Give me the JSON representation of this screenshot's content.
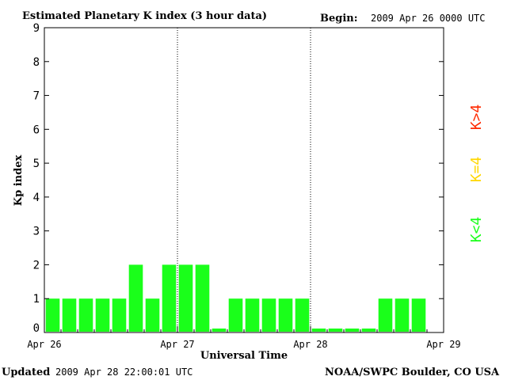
{
  "header": {
    "title": "Estimated Planetary K index (3 hour data)",
    "begin_label": "Begin:",
    "begin_value": "2009 Apr 26 0000 UTC"
  },
  "footer": {
    "updated_label": "Updated",
    "updated_value": "2009 Apr 28 22:00:01 UTC",
    "source": "NOAA/SWPC Boulder, CO USA"
  },
  "legend": {
    "high": "K>4",
    "equal": "K=4",
    "low": "K<4"
  },
  "colors": {
    "low": "#1aff1a",
    "equal": "#ffd700",
    "high": "#ff2a00",
    "axis": "#000000"
  },
  "chart_data": {
    "type": "bar",
    "title": "Estimated Planetary K index (3 hour data)",
    "xlabel": "Universal Time",
    "ylabel": "Kp index",
    "ylim": [
      0,
      9
    ],
    "yticks": [
      "0",
      "1",
      "2",
      "3",
      "4",
      "5",
      "6",
      "7",
      "8",
      "9"
    ],
    "day_labels": [
      "Apr 26",
      "Apr 27",
      "Apr 28",
      "Apr 29"
    ],
    "interval_hours": 3,
    "grid": "dotted day separators",
    "values": [
      1,
      1,
      1,
      1,
      1,
      2,
      1,
      2,
      2,
      2,
      0,
      1,
      1,
      1,
      1,
      1,
      0,
      0,
      0,
      0,
      1,
      1,
      1
    ]
  }
}
